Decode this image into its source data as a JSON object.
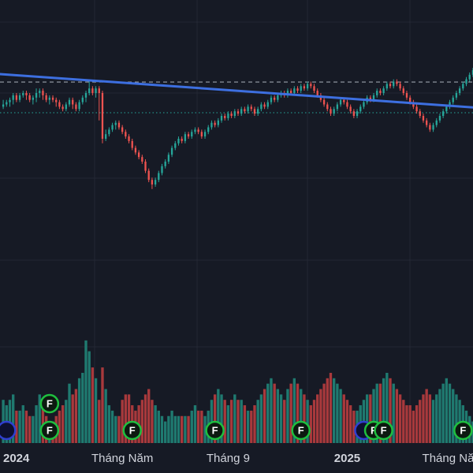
{
  "chart_data": {
    "type": "candlestick",
    "price_range": [
      0,
      100
    ],
    "colors": {
      "background": "#161a25",
      "grid": "#232734",
      "up": "#26a69a",
      "down": "#ef5350",
      "up_volume": "#1f7a70",
      "down_volume": "#a8393c",
      "trendline": "#3d6fe0",
      "dashed_line": "#9aa0ab",
      "dotted_line": "#26a69a",
      "dividend_marker": "#1fbf3f",
      "earnings_marker": "#2f3fd0"
    },
    "x_ticks": [
      {
        "label": "2024",
        "index": 0,
        "bold": true
      },
      {
        "label": "Tháng Năm",
        "index": 36,
        "bold": false
      },
      {
        "label": "Tháng 9",
        "index": 68,
        "bold": false
      },
      {
        "label": "2025",
        "index": 104,
        "bold": true
      },
      {
        "label": "Tháng Năm",
        "index": 136,
        "bold": false
      }
    ],
    "trendline": {
      "start": [
        -2,
        88.4
      ],
      "end": [
        148,
        73.1
      ]
    },
    "dashed_level": 84.8,
    "dotted_level": 71.4,
    "markers": [
      {
        "type": "earnings",
        "index": 1
      },
      {
        "type": "dividend",
        "index": 14,
        "label": "F",
        "level": 2
      },
      {
        "type": "dividend",
        "index": 14,
        "label": "F"
      },
      {
        "type": "dividend",
        "index": 39,
        "label": "F"
      },
      {
        "type": "dividend",
        "index": 64,
        "label": "F"
      },
      {
        "type": "dividend",
        "index": 90,
        "label": "F"
      },
      {
        "type": "earnings",
        "index": 109
      },
      {
        "type": "dividend",
        "index": 112,
        "label": "F"
      },
      {
        "type": "dividend",
        "index": 115,
        "label": "F"
      },
      {
        "type": "dividend",
        "index": 139,
        "label": "F"
      }
    ],
    "candles": []
  }
}
